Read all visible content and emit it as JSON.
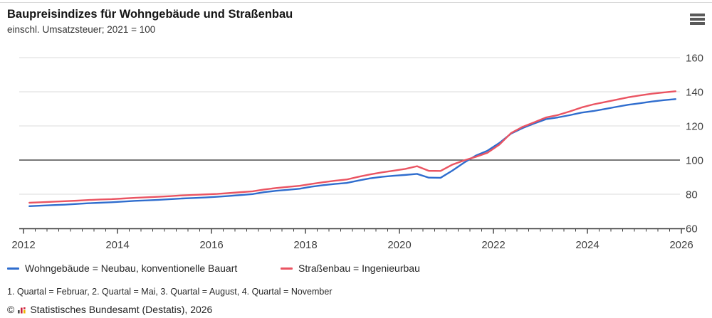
{
  "header": {
    "title": "Baupreisindizes für Wohngebäude und Straßenbau",
    "subtitle": "einschl. Umsatzsteuer; 2021 = 100",
    "menu_icon": "hamburger-menu-icon"
  },
  "chart_data": {
    "type": "line",
    "title": "Baupreisindizes für Wohngebäude und Straßenbau",
    "subtitle": "einschl. Umsatzsteuer; 2021 = 100",
    "x_unit": "quarter",
    "x_start_year": 2012,
    "quarters_per_year": 4,
    "x_axis": {
      "range": [
        2012,
        2026
      ],
      "labeled_years": [
        2012,
        2014,
        2016,
        2018,
        2020,
        2022,
        2024,
        2026
      ],
      "minor_tick": "quarterly"
    },
    "y_axis": {
      "range": [
        60,
        160
      ],
      "ticks": [
        60,
        80,
        100,
        120,
        140,
        160
      ],
      "reference_line": 100,
      "grid": true,
      "labels_side": "right"
    },
    "series": [
      {
        "name": "Wohngebäude = Neubau, konventionelle Bauart",
        "color": "#2f6dce",
        "values": [
          73.0,
          73.3,
          73.6,
          73.9,
          74.3,
          74.7,
          75.0,
          75.3,
          75.7,
          76.1,
          76.4,
          76.7,
          77.1,
          77.5,
          77.8,
          78.1,
          78.5,
          79.0,
          79.5,
          80.1,
          81.2,
          82.0,
          82.6,
          83.2,
          84.4,
          85.3,
          86.0,
          86.6,
          88.0,
          89.3,
          90.2,
          90.8,
          91.3,
          91.9,
          89.7,
          89.6,
          93.8,
          98.5,
          102.6,
          105.5,
          110.0,
          115.5,
          118.8,
          121.5,
          124.0,
          125.0,
          126.3,
          127.8,
          128.7,
          129.9,
          131.2,
          132.4,
          133.3,
          134.3,
          135.1,
          135.7
        ]
      },
      {
        "name": "Straßenbau = Ingenieurbau",
        "color": "#ea5462",
        "values": [
          75.0,
          75.3,
          75.6,
          75.9,
          76.2,
          76.6,
          76.9,
          77.1,
          77.5,
          77.9,
          78.2,
          78.5,
          78.9,
          79.3,
          79.6,
          79.9,
          80.2,
          80.7,
          81.2,
          81.7,
          82.8,
          83.6,
          84.3,
          84.9,
          86.0,
          87.0,
          87.9,
          88.6,
          90.2,
          91.6,
          92.8,
          93.8,
          94.8,
          96.4,
          93.7,
          93.6,
          97.3,
          99.8,
          101.9,
          104.3,
          109.0,
          115.8,
          119.5,
          122.2,
          125.0,
          126.4,
          128.5,
          130.8,
          132.6,
          134.0,
          135.4,
          136.8,
          137.9,
          138.9,
          139.6,
          140.3
        ]
      }
    ],
    "legend_position": "bottom"
  },
  "legend": {
    "items": [
      {
        "label": "Wohngebäude = Neubau, konventionelle Bauart",
        "color": "#2f6dce"
      },
      {
        "label": "Straßenbau = Ingenieurbau",
        "color": "#ea5462"
      }
    ]
  },
  "footer": {
    "quartal_note": "1. Quartal = Februar, 2. Quartal = Mai, 3. Quartal = August, 4. Quartal = November",
    "copyright_symbol": "©",
    "copyright_text": "Statistisches Bundesamt (Destatis), 2026",
    "logo_icon": "destatis-bar-chart-icon"
  },
  "style": {
    "grid_color": "#dbdbdb",
    "ref_line_color": "#4b4b4b",
    "axis_color": "#3c3c3c",
    "tick_label_color": "#3f3f3f"
  }
}
